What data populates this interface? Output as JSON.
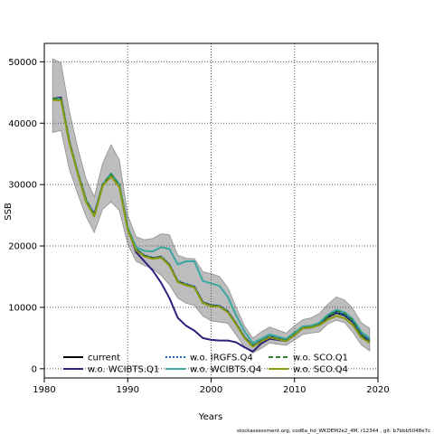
{
  "chart_data": {
    "type": "line",
    "xlabel": "Years",
    "ylabel": "SSB",
    "xlim": [
      1980,
      2020
    ],
    "ylim": [
      -1500,
      53000
    ],
    "x_ticks": [
      1980,
      1990,
      2000,
      2010,
      2020
    ],
    "y_ticks": [
      0,
      10000,
      20000,
      30000,
      40000,
      50000
    ],
    "grid": "dotted",
    "legend_position": "bottom-left",
    "footer": "stockassessment.org, cod6a_hd_WKDEM2e2_4M, r12344 , git: b7bbb5048e7c",
    "confidence_band": {
      "name": "current confidence interval",
      "color": "#bdbdbd",
      "years": [
        1981,
        1982,
        1983,
        1984,
        1985,
        1986,
        1987,
        1988,
        1989,
        1990,
        1991,
        1992,
        1993,
        1994,
        1995,
        1996,
        1997,
        1998,
        1999,
        2000,
        2001,
        2002,
        2003,
        2004,
        2005,
        2006,
        2007,
        2008,
        2009,
        2010,
        2011,
        2012,
        2013,
        2014,
        2015,
        2016,
        2017,
        2018,
        2019
      ],
      "upper": [
        50500,
        49800,
        42000,
        36000,
        31000,
        28000,
        33500,
        36500,
        34000,
        25000,
        21500,
        21000,
        21200,
        22000,
        21800,
        18500,
        18000,
        17900,
        15800,
        15500,
        15000,
        13200,
        10000,
        7000,
        5000,
        6000,
        6800,
        6300,
        5800,
        7000,
        8000,
        8300,
        9000,
        10500,
        11700,
        11200,
        9800,
        7500,
        6600
      ],
      "lower": [
        38500,
        38800,
        32500,
        28500,
        24800,
        22200,
        26000,
        27200,
        25800,
        20300,
        17500,
        16800,
        16300,
        15200,
        13700,
        11500,
        10700,
        10300,
        8600,
        7800,
        7600,
        7400,
        5500,
        3500,
        2600,
        3300,
        4200,
        4000,
        3800,
        4700,
        5600,
        5800,
        6000,
        7300,
        7900,
        7500,
        5900,
        3900,
        2900
      ]
    },
    "series": [
      {
        "name": "current",
        "color": "#000000",
        "dash": "solid",
        "width": 2,
        "years": [
          1981,
          1982,
          1983,
          1984,
          1985,
          1986,
          1987,
          1988,
          1989,
          1990,
          1991,
          1992,
          1993,
          1994,
          1995,
          1996,
          1997,
          1998,
          1999,
          2000,
          2001,
          2002,
          2003,
          2004,
          2005,
          2006,
          2007,
          2008,
          2009,
          2010,
          2011,
          2012,
          2013,
          2014,
          2015,
          2016,
          2017,
          2018,
          2019
        ],
        "values": [
          44000,
          44000,
          37000,
          32000,
          27500,
          25000,
          30000,
          31600,
          29800,
          22800,
          19400,
          18400,
          18000,
          18200,
          16900,
          14200,
          13700,
          13300,
          10800,
          10300,
          10200,
          9300,
          7300,
          5100,
          3700,
          4500,
          5200,
          4900,
          4600,
          5600,
          6700,
          6800,
          7200,
          8400,
          9100,
          8700,
          7600,
          5500,
          4500
        ]
      },
      {
        "name": "w.o. WCIBTS.Q1",
        "color": "#2e1f7a",
        "dash": "solid",
        "width": 2,
        "years": [
          1981,
          1982,
          1983,
          1984,
          1985,
          1986,
          1987,
          1988,
          1989,
          1990,
          1991,
          1992,
          1993,
          1994,
          1995,
          1996,
          1997,
          1998,
          1999,
          2000,
          2001,
          2002,
          2003,
          2004,
          2005,
          2006,
          2007,
          2008,
          2009,
          2010,
          2011,
          2012,
          2013,
          2014,
          2015,
          2016,
          2017,
          2018,
          2019
        ],
        "values": [
          44000,
          44200,
          37000,
          32000,
          27500,
          25200,
          30000,
          31800,
          30000,
          23000,
          19000,
          17500,
          16000,
          14000,
          11500,
          8300,
          7000,
          6200,
          5000,
          4700,
          4600,
          4600,
          4300,
          3500,
          2800,
          4100,
          4900,
          4700,
          4500,
          5500,
          6600,
          6700,
          7200,
          8500,
          9300,
          8800,
          7700,
          5600,
          4600
        ]
      },
      {
        "name": "w.o. IRGFS.Q4",
        "color": "#1565c0",
        "dash": "dotted",
        "width": 2,
        "years": [
          1981,
          1982,
          1983,
          1984,
          1985,
          1986,
          1987,
          1988,
          1989,
          1990,
          1991,
          1992,
          1993,
          1994,
          1995,
          1996,
          1997,
          1998,
          1999,
          2000,
          2001,
          2002,
          2003,
          2004,
          2005,
          2006,
          2007,
          2008,
          2009,
          2010,
          2011,
          2012,
          2013,
          2014,
          2015,
          2016,
          2017,
          2018,
          2019
        ],
        "values": [
          44000,
          44000,
          37000,
          32000,
          27500,
          25000,
          30000,
          31700,
          29900,
          22900,
          19500,
          18500,
          18100,
          18300,
          17000,
          14300,
          13800,
          13400,
          10900,
          10400,
          10300,
          9400,
          7400,
          5200,
          3800,
          4600,
          5300,
          5000,
          4700,
          5700,
          6800,
          6900,
          7300,
          8500,
          9200,
          8800,
          7700,
          5600,
          4600
        ]
      },
      {
        "name": "w.o. WCIBTS.Q4",
        "color": "#3aa8a0",
        "dash": "solid",
        "width": 2,
        "years": [
          1981,
          1982,
          1983,
          1984,
          1985,
          1986,
          1987,
          1988,
          1989,
          1990,
          1991,
          1992,
          1993,
          1994,
          1995,
          1996,
          1997,
          1998,
          1999,
          2000,
          2001,
          2002,
          2003,
          2004,
          2005,
          2006,
          2007,
          2008,
          2009,
          2010,
          2011,
          2012,
          2013,
          2014,
          2015,
          2016,
          2017,
          2018,
          2019
        ],
        "values": [
          44000,
          44000,
          37000,
          32000,
          27500,
          25000,
          30000,
          31800,
          30000,
          23000,
          19800,
          19200,
          19100,
          19800,
          19500,
          17000,
          17500,
          17500,
          14300,
          13900,
          13500,
          11700,
          8700,
          6100,
          4200,
          4900,
          5600,
          5200,
          4900,
          5900,
          6900,
          7000,
          7500,
          8800,
          9600,
          9200,
          8100,
          6000,
          5000
        ]
      },
      {
        "name": "w.o. SCO.Q1",
        "color": "#2e7d32",
        "dash": "dashed",
        "width": 2,
        "years": [
          1981,
          1982,
          1983,
          1984,
          1985,
          1986,
          1987,
          1988,
          1989,
          1990,
          1991,
          1992,
          1993,
          1994,
          1995,
          1996,
          1997,
          1998,
          1999,
          2000,
          2001,
          2002,
          2003,
          2004,
          2005,
          2006,
          2007,
          2008,
          2009,
          2010,
          2011,
          2012,
          2013,
          2014,
          2015,
          2016,
          2017,
          2018,
          2019
        ],
        "values": [
          44000,
          44000,
          37000,
          32000,
          27500,
          25000,
          30000,
          31600,
          29800,
          22800,
          19400,
          18400,
          18000,
          18200,
          16900,
          14200,
          13700,
          13300,
          10800,
          10300,
          10200,
          9300,
          7300,
          5100,
          3700,
          4500,
          5200,
          4900,
          4600,
          5600,
          6700,
          6800,
          7200,
          8500,
          9400,
          9000,
          7800,
          5600,
          4500
        ]
      },
      {
        "name": "w.o. SCO.Q4",
        "color": "#8a9a10",
        "dash": "solid",
        "width": 2,
        "years": [
          1981,
          1982,
          1983,
          1984,
          1985,
          1986,
          1987,
          1988,
          1989,
          1990,
          1991,
          1992,
          1993,
          1994,
          1995,
          1996,
          1997,
          1998,
          1999,
          2000,
          2001,
          2002,
          2003,
          2004,
          2005,
          2006,
          2007,
          2008,
          2009,
          2010,
          2011,
          2012,
          2013,
          2014,
          2015,
          2016,
          2017,
          2018,
          2019
        ],
        "values": [
          43800,
          43700,
          36800,
          31800,
          27200,
          24800,
          29800,
          31300,
          29600,
          22600,
          19300,
          18300,
          17900,
          18100,
          16800,
          14100,
          13600,
          13200,
          10700,
          10200,
          10100,
          9200,
          7200,
          5000,
          3600,
          4400,
          5100,
          4800,
          4500,
          5500,
          6600,
          6700,
          7100,
          8000,
          8600,
          8200,
          7100,
          5100,
          4200
        ]
      }
    ]
  }
}
